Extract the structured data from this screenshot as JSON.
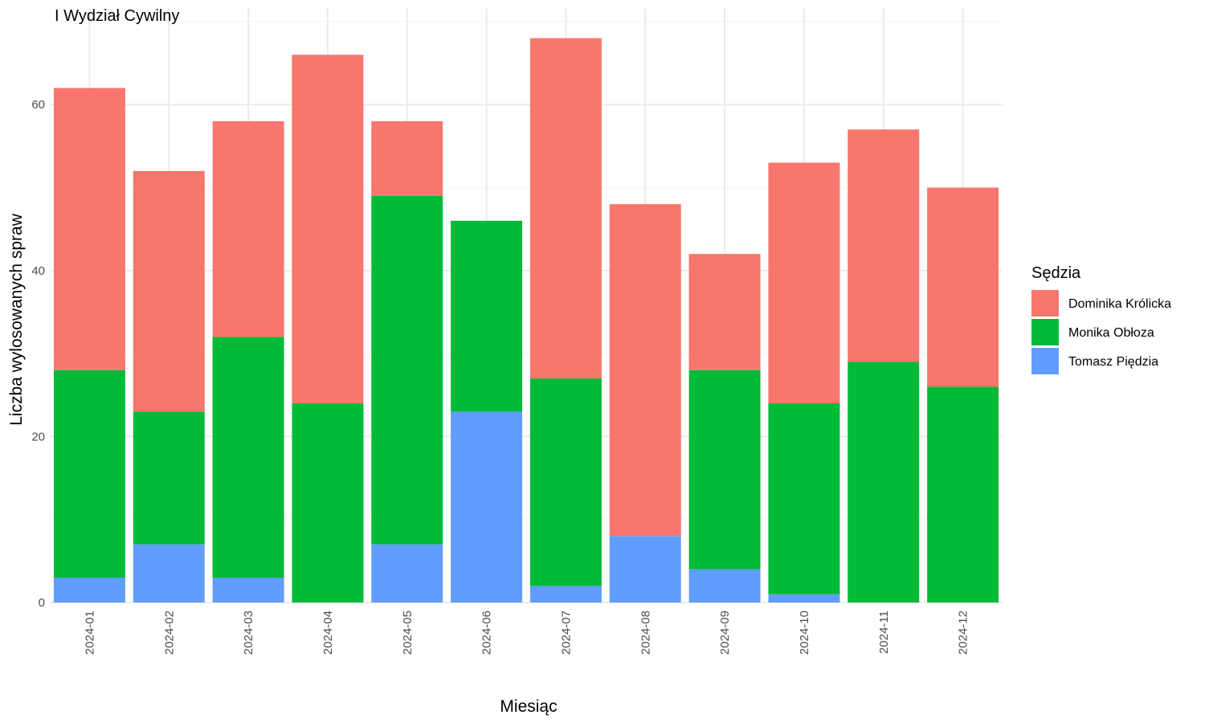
{
  "chart_data": {
    "type": "bar",
    "stacked": true,
    "title": "I Wydział Cywilny",
    "xlabel": "Miesiąc",
    "ylabel": "Liczba wylosowanych spraw",
    "categories": [
      "2024-01",
      "2024-02",
      "2024-03",
      "2024-04",
      "2024-05",
      "2024-06",
      "2024-07",
      "2024-08",
      "2024-09",
      "2024-10",
      "2024-11",
      "2024-12"
    ],
    "series": [
      {
        "name": "Tomasz Piędzia",
        "color": "#619CFF",
        "values": [
          3,
          7,
          3,
          0,
          7,
          23,
          2,
          8,
          4,
          1,
          0,
          0
        ]
      },
      {
        "name": "Monika Obłoza",
        "color": "#00BA38",
        "values": [
          25,
          16,
          29,
          24,
          42,
          23,
          25,
          0,
          24,
          23,
          29,
          26
        ]
      },
      {
        "name": "Dominika Królicka",
        "color": "#F8766D",
        "values": [
          34,
          29,
          26,
          42,
          9,
          0,
          41,
          40,
          14,
          29,
          28,
          24
        ]
      }
    ],
    "ylim": [
      0,
      70
    ],
    "yticks": [
      0,
      20,
      40,
      60
    ],
    "grid": true,
    "legend": {
      "title": "Sędzia",
      "position": "right",
      "entries": [
        "Dominika Królicka",
        "Monika Obłoza",
        "Tomasz Piędzia"
      ]
    }
  }
}
